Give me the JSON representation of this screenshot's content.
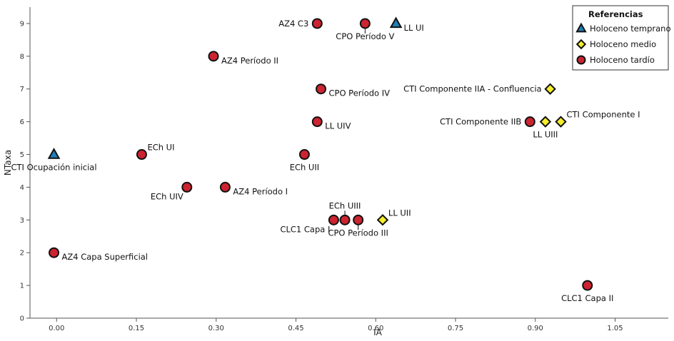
{
  "chart_data": {
    "type": "scatter",
    "xlabel": "IA",
    "ylabel": "NTaxa",
    "xlim": [
      -0.05,
      1.15
    ],
    "ylim": [
      0,
      9.5
    ],
    "x_ticks": [
      0.0,
      0.15,
      0.3,
      0.45,
      0.6,
      0.75,
      0.9,
      1.05
    ],
    "x_tick_labels": [
      "0.00",
      "0.15",
      "0.30",
      "0.45",
      "0.60",
      "0.75",
      "0.90",
      "1.05"
    ],
    "y_ticks": [
      0,
      1,
      2,
      3,
      4,
      5,
      6,
      7,
      8,
      9
    ],
    "y_tick_labels": [
      "0",
      "1",
      "2",
      "3",
      "4",
      "5",
      "6",
      "7",
      "8",
      "9"
    ],
    "grid": false,
    "legend": {
      "title": "Referencias",
      "position": "top-right",
      "entries": [
        {
          "name": "Holoceno temprano",
          "marker": "triangle",
          "color": "#1f7fb5"
        },
        {
          "name": "Holoceno medio",
          "marker": "diamond",
          "color": "#f5ee2a"
        },
        {
          "name": "Holoceno tardío",
          "marker": "circle",
          "color": "#cc2430"
        }
      ]
    },
    "series": [
      {
        "name": "Holoceno temprano",
        "marker": "triangle",
        "color": "#1f7fb5",
        "points": [
          {
            "x": -0.005,
            "y": 5,
            "label": "CTI Ocupación inicial",
            "pos": "below"
          },
          {
            "x": 0.638,
            "y": 9,
            "label": "LL UI",
            "pos": "right"
          }
        ]
      },
      {
        "name": "Holoceno medio",
        "marker": "diamond",
        "color": "#f5ee2a",
        "points": [
          {
            "x": 0.613,
            "y": 3,
            "label": "LL UII",
            "pos": "upright"
          },
          {
            "x": 0.928,
            "y": 7,
            "label": "CTI Componente IIA - Confluencia",
            "pos": "left"
          },
          {
            "x": 0.919,
            "y": 6,
            "label": "LL UIII",
            "pos": "below"
          },
          {
            "x": 0.948,
            "y": 6,
            "label": "CTI Componente I",
            "pos": "upright"
          }
        ]
      },
      {
        "name": "Holoceno tardío",
        "marker": "circle",
        "color": "#cc2430",
        "points": [
          {
            "x": -0.005,
            "y": 2,
            "label": "AZ4 Capa Superficial",
            "pos": "right"
          },
          {
            "x": 0.16,
            "y": 5,
            "label": "ECh UI",
            "pos": "upright"
          },
          {
            "x": 0.245,
            "y": 4,
            "label": "ECh UIV",
            "pos": "downleft"
          },
          {
            "x": 0.295,
            "y": 8,
            "label": "AZ4 Período II",
            "pos": "right"
          },
          {
            "x": 0.317,
            "y": 4,
            "label": "AZ4 Período I",
            "pos": "right"
          },
          {
            "x": 0.466,
            "y": 5,
            "label": "ECh UII",
            "pos": "below"
          },
          {
            "x": 0.49,
            "y": 9,
            "label": "AZ4 C3",
            "pos": "left"
          },
          {
            "x": 0.49,
            "y": 6,
            "label": "LL UIV",
            "pos": "right"
          },
          {
            "x": 0.497,
            "y": 7,
            "label": "CPO Período IV",
            "pos": "right"
          },
          {
            "x": 0.521,
            "y": 3,
            "label": "CLC1 Capa I",
            "pos": "downleft"
          },
          {
            "x": 0.542,
            "y": 3,
            "label": "ECh UIII",
            "pos": "above"
          },
          {
            "x": 0.567,
            "y": 3,
            "label": "CPO Período III",
            "pos": "below"
          },
          {
            "x": 0.58,
            "y": 9,
            "label": "CPO Período V",
            "pos": "below"
          },
          {
            "x": 0.89,
            "y": 6,
            "label": "CTI Componente IIB",
            "pos": "left"
          },
          {
            "x": 0.998,
            "y": 1,
            "label": "CLC1 Capa II",
            "pos": "below"
          }
        ]
      }
    ]
  }
}
